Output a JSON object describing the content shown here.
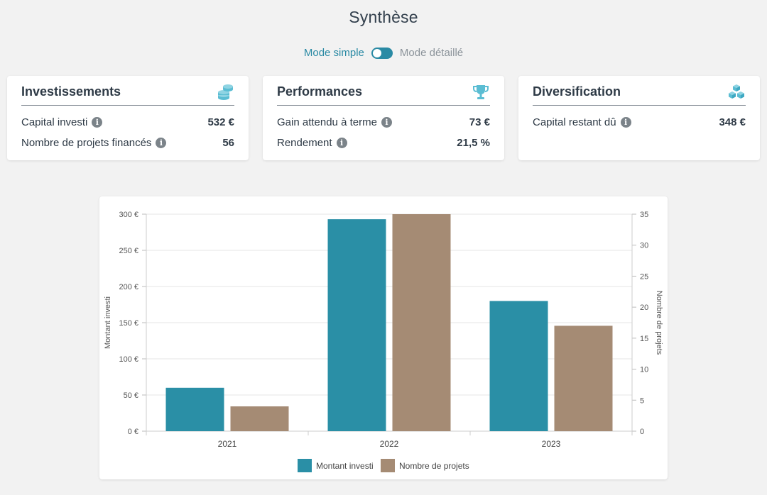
{
  "header": {
    "title": "Synthèse"
  },
  "mode": {
    "simple_label": "Mode simple",
    "detailed_label": "Mode détaillé",
    "active": "simple"
  },
  "cards": [
    {
      "title": "Investissements",
      "icon": "coins-stack-icon",
      "rows": [
        {
          "label": "Capital investi",
          "value": "532 €"
        },
        {
          "label": "Nombre de projets financés",
          "value": "56"
        }
      ]
    },
    {
      "title": "Performances",
      "icon": "trophy-icon",
      "rows": [
        {
          "label": "Gain attendu à terme",
          "value": "73 €"
        },
        {
          "label": "Rendement",
          "value": "21,5 %"
        }
      ]
    },
    {
      "title": "Diversification",
      "icon": "cubes-icon",
      "rows": [
        {
          "label": "Capital restant dû",
          "value": "348 €"
        }
      ]
    }
  ],
  "colors": {
    "accent": "#2a8aa4",
    "bar_primary": "#2a8fa6",
    "bar_secondary": "#a58b74"
  },
  "chart_data": {
    "type": "bar",
    "categories": [
      "2021",
      "2022",
      "2023"
    ],
    "series": [
      {
        "name": "Montant investi",
        "axis": "left",
        "values": [
          60,
          293,
          180
        ],
        "color": "#2a8fa6"
      },
      {
        "name": "Nombre de projets",
        "axis": "right",
        "values": [
          4,
          35,
          17
        ],
        "color": "#a58b74"
      }
    ],
    "y_left": {
      "label": "Montant investi",
      "ticks": [
        "0 €",
        "50 €",
        "100 €",
        "150 €",
        "200 €",
        "250 €",
        "300 €"
      ],
      "range": [
        0,
        300
      ]
    },
    "y_right": {
      "label": "Nombre de projets",
      "ticks": [
        "0",
        "5",
        "10",
        "15",
        "20",
        "25",
        "30",
        "35"
      ],
      "range": [
        0,
        35
      ]
    },
    "grid": true,
    "legend": "bottom"
  }
}
